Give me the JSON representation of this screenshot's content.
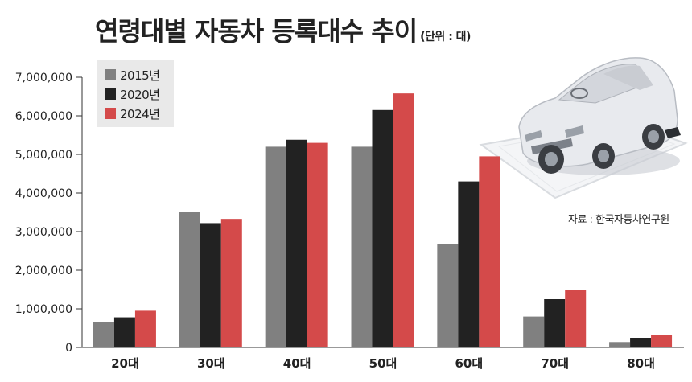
{
  "header": {
    "title": "연령대별 자동차 등록대수 추이",
    "unit": "(단위 : 대)"
  },
  "source": "자료 : 한국자동차연구원",
  "illustration": {
    "icon": "car-icon"
  },
  "chart_data": {
    "type": "bar",
    "categories": [
      "20대",
      "30대",
      "40대",
      "50대",
      "60대",
      "70대",
      "80대"
    ],
    "series": [
      {
        "name": "2015년",
        "color": "#808080",
        "values": [
          650000,
          3500000,
          5200000,
          5200000,
          2670000,
          800000,
          140000
        ]
      },
      {
        "name": "2020년",
        "color": "#222222",
        "values": [
          780000,
          3220000,
          5380000,
          6150000,
          4300000,
          1250000,
          250000
        ]
      },
      {
        "name": "2024년",
        "color": "#d44a4a",
        "values": [
          950000,
          3330000,
          5300000,
          6580000,
          4950000,
          1500000,
          320000
        ]
      }
    ],
    "y_ticks": [
      "0",
      "1,000,000",
      "2,000,000",
      "3,000,000",
      "4,000,000",
      "5,000,000",
      "6,000,000",
      "7,000,000"
    ],
    "ylim": [
      0,
      7000000
    ],
    "xlabel": "",
    "ylabel": "",
    "grid": false,
    "legend_position": "top-left"
  }
}
